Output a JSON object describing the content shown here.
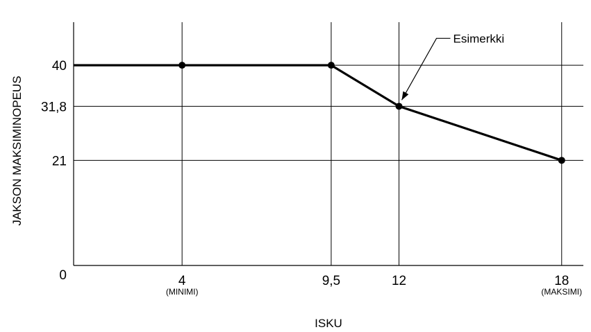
{
  "chart_data": {
    "type": "line",
    "title": "",
    "xlabel": "ISKU",
    "ylabel": "JAKSON MAKSIMINOPEUS",
    "xlim": [
      0,
      18.8
    ],
    "ylim": [
      0,
      48.6
    ],
    "x_ticks": [
      {
        "value": 4,
        "label": "4",
        "sublabel": "(MINIMI)"
      },
      {
        "value": 9.5,
        "label": "9,5",
        "sublabel": ""
      },
      {
        "value": 12,
        "label": "12",
        "sublabel": ""
      },
      {
        "value": 18,
        "label": "18",
        "sublabel": "(MAKSIMI)"
      }
    ],
    "y_ticks": [
      {
        "value": 0,
        "label": "0"
      },
      {
        "value": 21,
        "label": "21"
      },
      {
        "value": 31.8,
        "label": "31,8"
      },
      {
        "value": 40,
        "label": "40"
      }
    ],
    "series": [
      {
        "points": [
          {
            "x": 0,
            "y": 40
          },
          {
            "x": 4,
            "y": 40
          },
          {
            "x": 9.5,
            "y": 40
          },
          {
            "x": 12,
            "y": 31.8
          },
          {
            "x": 18,
            "y": 21
          }
        ],
        "markers": [
          1,
          2,
          3,
          4
        ],
        "color": "#000000"
      }
    ],
    "annotations": [
      {
        "text": "Esimerkki",
        "target": {
          "x": 12,
          "y": 31.8
        }
      }
    ],
    "grid": true
  }
}
